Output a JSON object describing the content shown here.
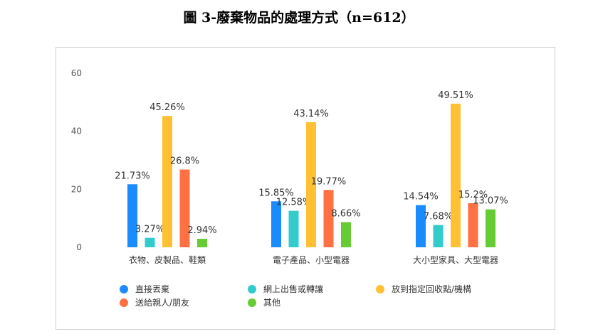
{
  "title": "圖 3-廢棄物品的處理方式（n=612）",
  "chart_data": {
    "type": "bar",
    "title": "圖 3-廢棄物品的處理方式（n=612）",
    "categories": [
      "衣物、皮製品、鞋類",
      "電子產品、小型電器",
      "大小型家具、大型電器"
    ],
    "series": [
      {
        "name": "直接丟棄",
        "color": "#1a8cff",
        "values": [
          21.73,
          15.85,
          14.54
        ],
        "labels": [
          "21.73%",
          "15.85%",
          "14.54%"
        ]
      },
      {
        "name": "網上出售或轉讓",
        "color": "#33cccc",
        "values": [
          3.27,
          12.58,
          7.68
        ],
        "labels": [
          "3.27%",
          "12.58%",
          "7.68%"
        ]
      },
      {
        "name": "放到指定回收點/機構",
        "color": "#ffc133",
        "values": [
          45.26,
          43.14,
          49.51
        ],
        "labels": [
          "45.26%",
          "43.14%",
          "49.51%"
        ]
      },
      {
        "name": "送給親人/朋友",
        "color": "#ff7043",
        "values": [
          26.8,
          19.77,
          15.2
        ],
        "labels": [
          "26.8%",
          "19.77%",
          "15.2%"
        ]
      },
      {
        "name": "其他",
        "color": "#66cc33",
        "values": [
          2.94,
          8.66,
          13.07
        ],
        "labels": [
          "2.94%",
          "8.66%",
          "13.07%"
        ]
      }
    ],
    "ylim": [
      0,
      60
    ],
    "yticks": [
      "0",
      "20",
      "40",
      "60"
    ],
    "grid": false,
    "legend": "bottom"
  }
}
